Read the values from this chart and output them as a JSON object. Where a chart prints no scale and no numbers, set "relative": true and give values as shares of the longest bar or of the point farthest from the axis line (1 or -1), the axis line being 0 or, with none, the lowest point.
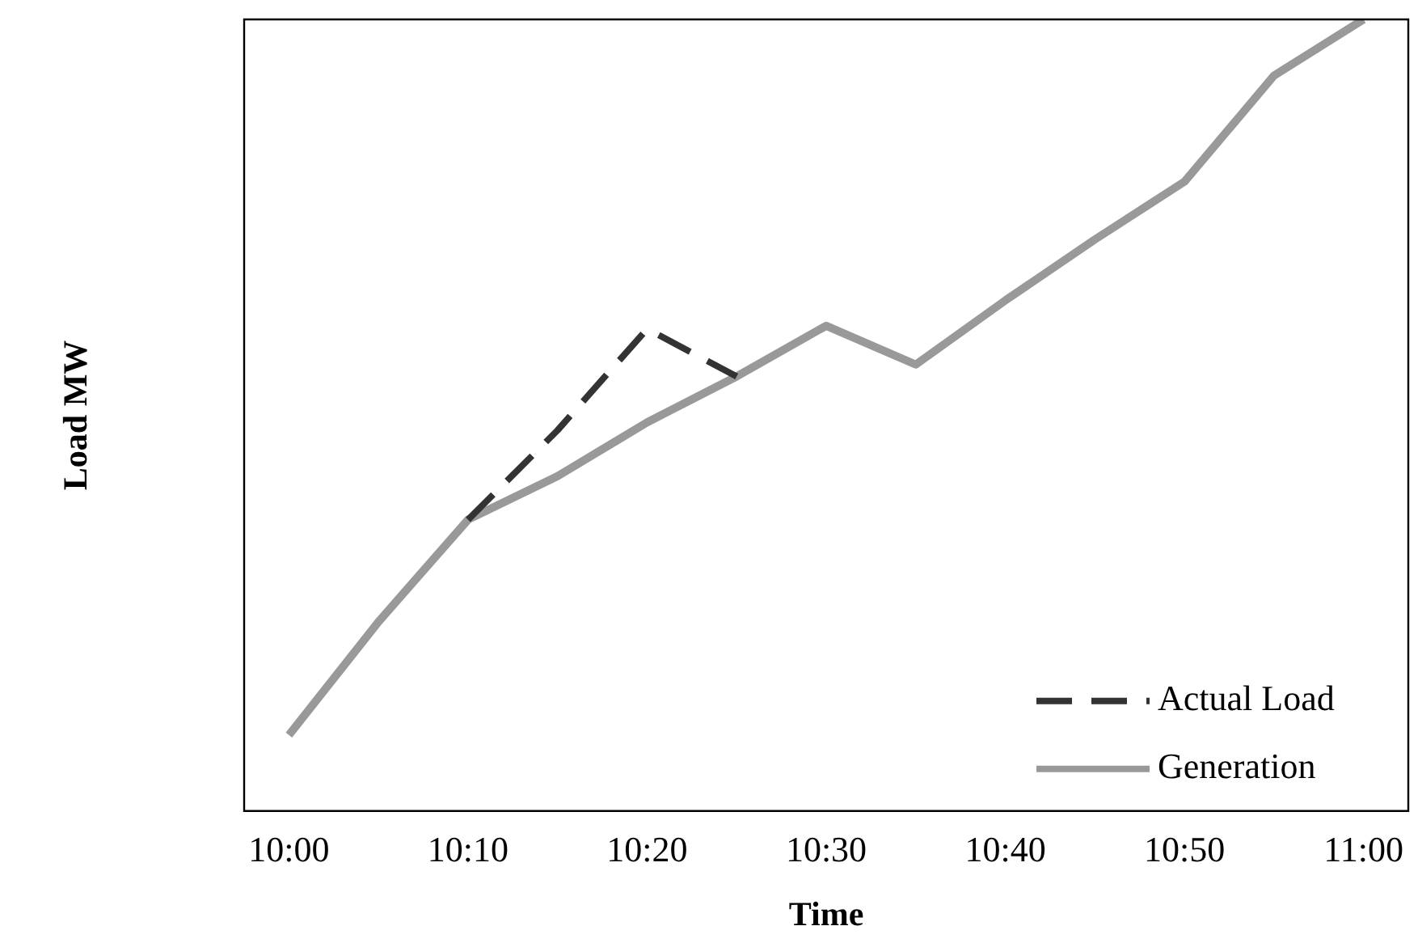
{
  "chart_data": {
    "type": "line",
    "relative": true,
    "xlabel": "Time",
    "ylabel": "Load MW",
    "legend": "bottom right",
    "grid": false,
    "marker": "none",
    "categories": [
      "10:00",
      null,
      "10:10",
      null,
      "10:20",
      null,
      "10:30",
      null,
      "10:40",
      null,
      "10:50",
      null,
      "11:00"
    ],
    "series": [
      {
        "name": "Actual Load",
        "color": "#333333",
        "line_style": "dashed",
        "values": [
          null,
          null,
          0.368,
          0.481,
          0.609,
          0.549,
          null,
          null,
          null,
          null,
          null,
          null,
          null
        ]
      },
      {
        "name": "Generation",
        "color": "#999999",
        "line_style": "solid",
        "values": [
          0.096,
          0.239,
          0.368,
          0.423,
          0.491,
          0.549,
          0.613,
          0.564,
          0.645,
          0.722,
          0.795,
          0.929,
          1
        ]
      }
    ]
  }
}
